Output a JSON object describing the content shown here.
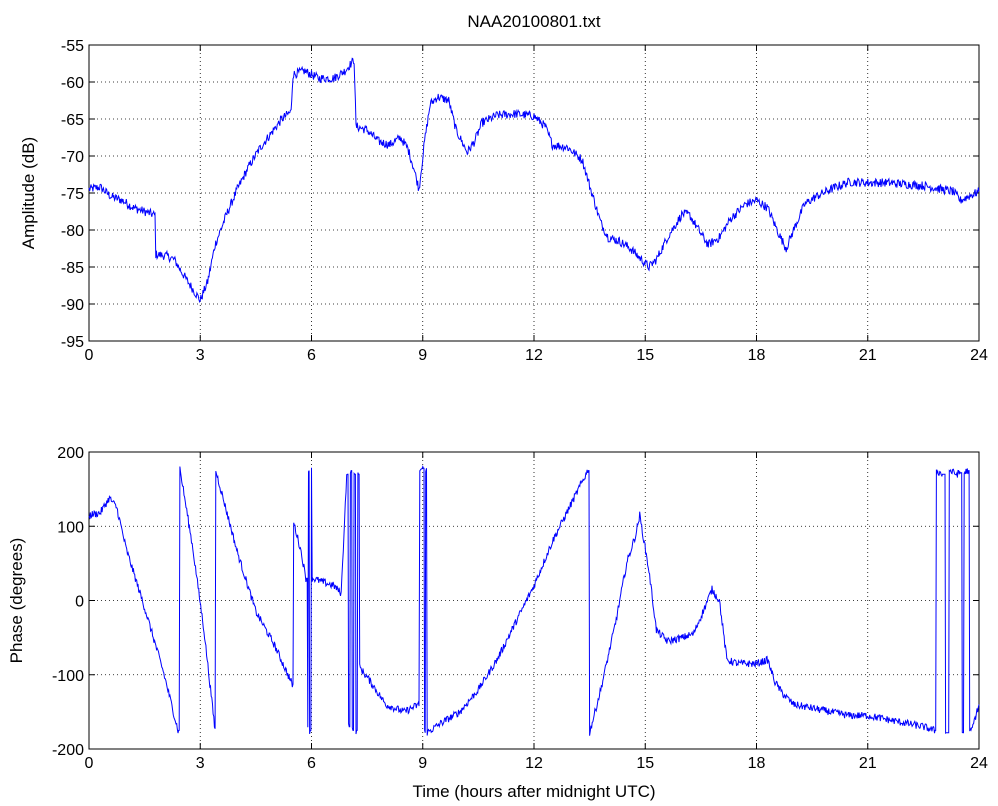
{
  "title": "NAA20100801.txt",
  "line_color": "#0000ff",
  "chart_data": [
    {
      "type": "line",
      "name": "amplitude",
      "ylabel": "Amplitude (dB)",
      "xlabel": "",
      "xlim": [
        0,
        24
      ],
      "ylim": [
        -95,
        -55
      ],
      "xticks": [
        0,
        3,
        6,
        9,
        12,
        15,
        18,
        21,
        24
      ],
      "yticks": [
        -95,
        -90,
        -85,
        -80,
        -75,
        -70,
        -65,
        -60,
        -55
      ],
      "grid": true,
      "noise_db": 0.6,
      "points": [
        [
          0,
          -74.5
        ],
        [
          0.3,
          -74.2
        ],
        [
          0.6,
          -75.5
        ],
        [
          0.9,
          -76.0
        ],
        [
          1.2,
          -77.0
        ],
        [
          1.5,
          -77.5
        ],
        [
          1.78,
          -78.0
        ],
        [
          1.8,
          -83.3
        ],
        [
          2.1,
          -83.5
        ],
        [
          2.3,
          -84.0
        ],
        [
          2.6,
          -86.5
        ],
        [
          2.8,
          -88.0
        ],
        [
          3.0,
          -89.5
        ],
        [
          3.2,
          -87.0
        ],
        [
          3.4,
          -82.0
        ],
        [
          3.7,
          -78.0
        ],
        [
          4.0,
          -74.5
        ],
        [
          4.3,
          -71.5
        ],
        [
          4.6,
          -69.0
        ],
        [
          4.9,
          -67.0
        ],
        [
          5.2,
          -65.0
        ],
        [
          5.45,
          -64.0
        ],
        [
          5.5,
          -59.0
        ],
        [
          5.8,
          -58.5
        ],
        [
          6.2,
          -59.5
        ],
        [
          6.6,
          -59.5
        ],
        [
          6.9,
          -58.5
        ],
        [
          7.15,
          -57.0
        ],
        [
          7.2,
          -66.0
        ],
        [
          7.5,
          -66.5
        ],
        [
          7.8,
          -68.0
        ],
        [
          8.1,
          -68.5
        ],
        [
          8.4,
          -67.5
        ],
        [
          8.6,
          -69.0
        ],
        [
          8.75,
          -71.5
        ],
        [
          8.9,
          -74.5
        ],
        [
          9.05,
          -68.0
        ],
        [
          9.2,
          -63.0
        ],
        [
          9.4,
          -62.0
        ],
        [
          9.7,
          -62.5
        ],
        [
          9.9,
          -66.5
        ],
        [
          10.2,
          -69.5
        ],
        [
          10.4,
          -68.0
        ],
        [
          10.6,
          -65.5
        ],
        [
          11.0,
          -64.5
        ],
        [
          11.5,
          -64.3
        ],
        [
          12.0,
          -64.6
        ],
        [
          12.3,
          -66.0
        ],
        [
          12.5,
          -68.5
        ],
        [
          12.9,
          -68.8
        ],
        [
          13.3,
          -70.5
        ],
        [
          13.5,
          -74.0
        ],
        [
          13.8,
          -79.0
        ],
        [
          14.0,
          -81.0
        ],
        [
          14.3,
          -81.5
        ],
        [
          14.6,
          -82.5
        ],
        [
          14.9,
          -84.0
        ],
        [
          15.1,
          -85.0
        ],
        [
          15.3,
          -84.0
        ],
        [
          15.6,
          -81.0
        ],
        [
          16.0,
          -77.8
        ],
        [
          16.2,
          -78.0
        ],
        [
          16.5,
          -80.5
        ],
        [
          16.7,
          -82.0
        ],
        [
          17.0,
          -81.0
        ],
        [
          17.3,
          -78.5
        ],
        [
          17.7,
          -76.5
        ],
        [
          18.0,
          -76.0
        ],
        [
          18.3,
          -77.0
        ],
        [
          18.6,
          -80.5
        ],
        [
          18.8,
          -82.5
        ],
        [
          19.0,
          -80.0
        ],
        [
          19.3,
          -76.5
        ],
        [
          19.6,
          -75.5
        ],
        [
          20.0,
          -74.5
        ],
        [
          20.5,
          -73.5
        ],
        [
          21.0,
          -73.6
        ],
        [
          21.5,
          -73.6
        ],
        [
          22.0,
          -73.8
        ],
        [
          22.5,
          -74.0
        ],
        [
          23.0,
          -74.5
        ],
        [
          23.3,
          -74.8
        ],
        [
          23.5,
          -76.0
        ],
        [
          23.7,
          -75.5
        ],
        [
          24.0,
          -74.8
        ]
      ]
    },
    {
      "type": "line",
      "name": "phase",
      "ylabel": "Phase (degrees)",
      "xlabel": "Time (hours after midnight UTC)",
      "xlim": [
        0,
        24
      ],
      "ylim": [
        -200,
        200
      ],
      "xticks": [
        0,
        3,
        6,
        9,
        12,
        15,
        18,
        21,
        24
      ],
      "yticks": [
        -200,
        -100,
        0,
        100,
        200
      ],
      "grid": true,
      "noise_deg": 5,
      "points": [
        [
          0,
          115
        ],
        [
          0.3,
          118
        ],
        [
          0.55,
          138
        ],
        [
          0.75,
          125
        ],
        [
          1.0,
          70
        ],
        [
          1.5,
          -10
        ],
        [
          2.0,
          -95
        ],
        [
          2.4,
          -175
        ],
        [
          2.45,
          178
        ],
        [
          2.8,
          70
        ],
        [
          3.1,
          -40
        ],
        [
          3.4,
          -175
        ],
        [
          3.42,
          175
        ],
        [
          4.0,
          65
        ],
        [
          4.5,
          -15
        ],
        [
          5.0,
          -60
        ],
        [
          5.5,
          -115
        ],
        [
          5.52,
          105
        ],
        [
          5.7,
          70
        ],
        [
          5.85,
          30
        ],
        [
          5.9,
          -170
        ],
        [
          5.92,
          175
        ],
        [
          5.95,
          -175
        ],
        [
          6.0,
          175
        ],
        [
          6.02,
          30
        ],
        [
          6.3,
          25
        ],
        [
          6.6,
          20
        ],
        [
          6.8,
          10
        ],
        [
          6.95,
          170
        ],
        [
          7.0,
          -170
        ],
        [
          7.05,
          175
        ],
        [
          7.1,
          -175
        ],
        [
          7.15,
          170
        ],
        [
          7.2,
          -175
        ],
        [
          7.25,
          170
        ],
        [
          7.3,
          -90
        ],
        [
          7.6,
          -110
        ],
        [
          8.0,
          -140
        ],
        [
          8.5,
          -150
        ],
        [
          8.9,
          -140
        ],
        [
          8.92,
          175
        ],
        [
          9.0,
          178
        ],
        [
          9.05,
          -178
        ],
        [
          9.08,
          178
        ],
        [
          9.12,
          -178
        ],
        [
          9.5,
          -165
        ],
        [
          10.0,
          -150
        ],
        [
          10.5,
          -120
        ],
        [
          11.0,
          -80
        ],
        [
          11.5,
          -30
        ],
        [
          12.0,
          20
        ],
        [
          12.5,
          80
        ],
        [
          13.0,
          130
        ],
        [
          13.45,
          175
        ],
        [
          13.5,
          -178
        ],
        [
          13.8,
          -120
        ],
        [
          14.2,
          -30
        ],
        [
          14.5,
          50
        ],
        [
          14.75,
          90
        ],
        [
          14.85,
          115
        ],
        [
          15.1,
          40
        ],
        [
          15.3,
          -40
        ],
        [
          15.6,
          -55
        ],
        [
          16.0,
          -50
        ],
        [
          16.3,
          -45
        ],
        [
          16.6,
          -10
        ],
        [
          16.8,
          15
        ],
        [
          17.0,
          0
        ],
        [
          17.2,
          -80
        ],
        [
          17.5,
          -85
        ],
        [
          18.0,
          -85
        ],
        [
          18.3,
          -80
        ],
        [
          18.5,
          -110
        ],
        [
          18.7,
          -125
        ],
        [
          19.0,
          -140
        ],
        [
          19.5,
          -145
        ],
        [
          20.0,
          -150
        ],
        [
          20.5,
          -155
        ],
        [
          21.0,
          -155
        ],
        [
          21.5,
          -160
        ],
        [
          22.0,
          -165
        ],
        [
          22.5,
          -170
        ],
        [
          22.8,
          -175
        ],
        [
          22.85,
          175
        ],
        [
          23.0,
          170
        ],
        [
          23.1,
          -178
        ],
        [
          23.2,
          175
        ],
        [
          23.4,
          170
        ],
        [
          23.5,
          172
        ],
        [
          23.55,
          -178
        ],
        [
          23.6,
          172
        ],
        [
          23.7,
          175
        ],
        [
          23.75,
          -178
        ],
        [
          23.8,
          -175
        ],
        [
          24.0,
          -140
        ]
      ]
    }
  ]
}
